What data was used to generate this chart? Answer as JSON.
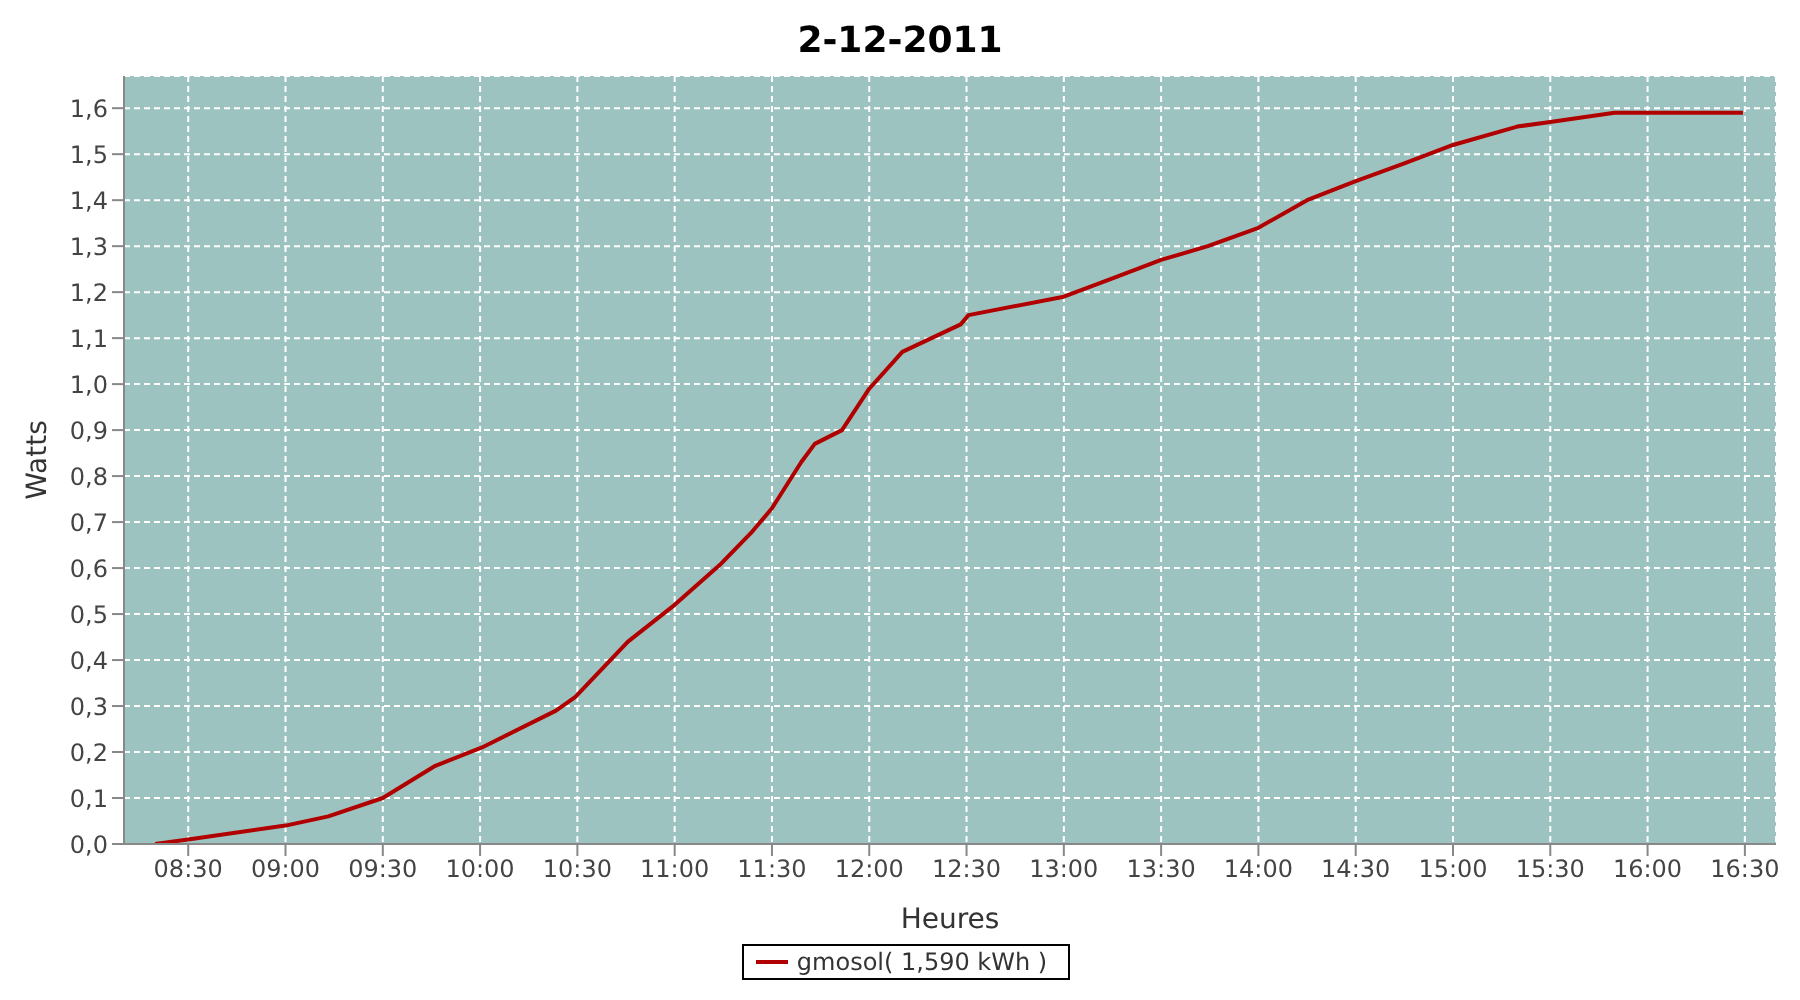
{
  "chart_data": {
    "type": "line",
    "title": "2-12-2011",
    "xlabel": "Heures",
    "ylabel": "Watts",
    "x": [
      8.33,
      8.5,
      9.0,
      9.22,
      9.5,
      9.77,
      10.01,
      10.39,
      10.49,
      10.76,
      11.0,
      11.24,
      11.4,
      11.5,
      11.65,
      11.72,
      11.86,
      12.0,
      12.17,
      12.47,
      12.51,
      13.0,
      13.25,
      13.5,
      13.74,
      14.0,
      14.25,
      14.49,
      14.75,
      15.0,
      15.33,
      15.5,
      15.83,
      16.0,
      16.38,
      16.49
    ],
    "series": [
      {
        "name": "gmosol( 1,590 kWh )",
        "color": "#b00000",
        "values": [
          0.0,
          0.01,
          0.04,
          0.06,
          0.1,
          0.17,
          0.21,
          0.29,
          0.32,
          0.44,
          0.52,
          0.61,
          0.68,
          0.73,
          0.83,
          0.87,
          0.9,
          0.99,
          1.07,
          1.13,
          1.15,
          1.19,
          1.23,
          1.27,
          1.3,
          1.34,
          1.4,
          1.44,
          1.48,
          1.52,
          1.56,
          1.57,
          1.59,
          1.59,
          1.59,
          1.59
        ]
      }
    ],
    "xlim": [
      8.17,
      16.66
    ],
    "xticks": [
      {
        "value": 8.5,
        "label": "08:30"
      },
      {
        "value": 9,
        "label": "09:00"
      },
      {
        "value": 9.5,
        "label": "09:30"
      },
      {
        "value": 10,
        "label": "10:00"
      },
      {
        "value": 10.5,
        "label": "10:30"
      },
      {
        "value": 11,
        "label": "11:00"
      },
      {
        "value": 11.5,
        "label": "11:30"
      },
      {
        "value": 12,
        "label": "12:00"
      },
      {
        "value": 12.5,
        "label": "12:30"
      },
      {
        "value": 13,
        "label": "13:00"
      },
      {
        "value": 13.5,
        "label": "13:30"
      },
      {
        "value": 14,
        "label": "14:00"
      },
      {
        "value": 14.5,
        "label": "14:30"
      },
      {
        "value": 15,
        "label": "15:00"
      },
      {
        "value": 15.5,
        "label": "15:30"
      },
      {
        "value": 16,
        "label": "16:00"
      },
      {
        "value": 16.5,
        "label": "16:30"
      }
    ],
    "ylim": [
      0,
      1.67
    ],
    "yticks": [
      {
        "value": 0,
        "label": "0,0"
      },
      {
        "value": 0.1,
        "label": "0,1"
      },
      {
        "value": 0.2,
        "label": "0,2"
      },
      {
        "value": 0.3,
        "label": "0,3"
      },
      {
        "value": 0.4,
        "label": "0,4"
      },
      {
        "value": 0.5,
        "label": "0,5"
      },
      {
        "value": 0.6,
        "label": "0,6"
      },
      {
        "value": 0.7,
        "label": "0,7"
      },
      {
        "value": 0.8,
        "label": "0,8"
      },
      {
        "value": 0.9,
        "label": "0,9"
      },
      {
        "value": 1.0,
        "label": "1,0"
      },
      {
        "value": 1.1,
        "label": "1,1"
      },
      {
        "value": 1.2,
        "label": "1,2"
      },
      {
        "value": 1.3,
        "label": "1,3"
      },
      {
        "value": 1.4,
        "label": "1,4"
      },
      {
        "value": 1.5,
        "label": "1,5"
      },
      {
        "value": 1.6,
        "label": "1,6"
      }
    ],
    "grid": true,
    "legend": "bottom",
    "marker": "none",
    "line_style": "solid"
  }
}
